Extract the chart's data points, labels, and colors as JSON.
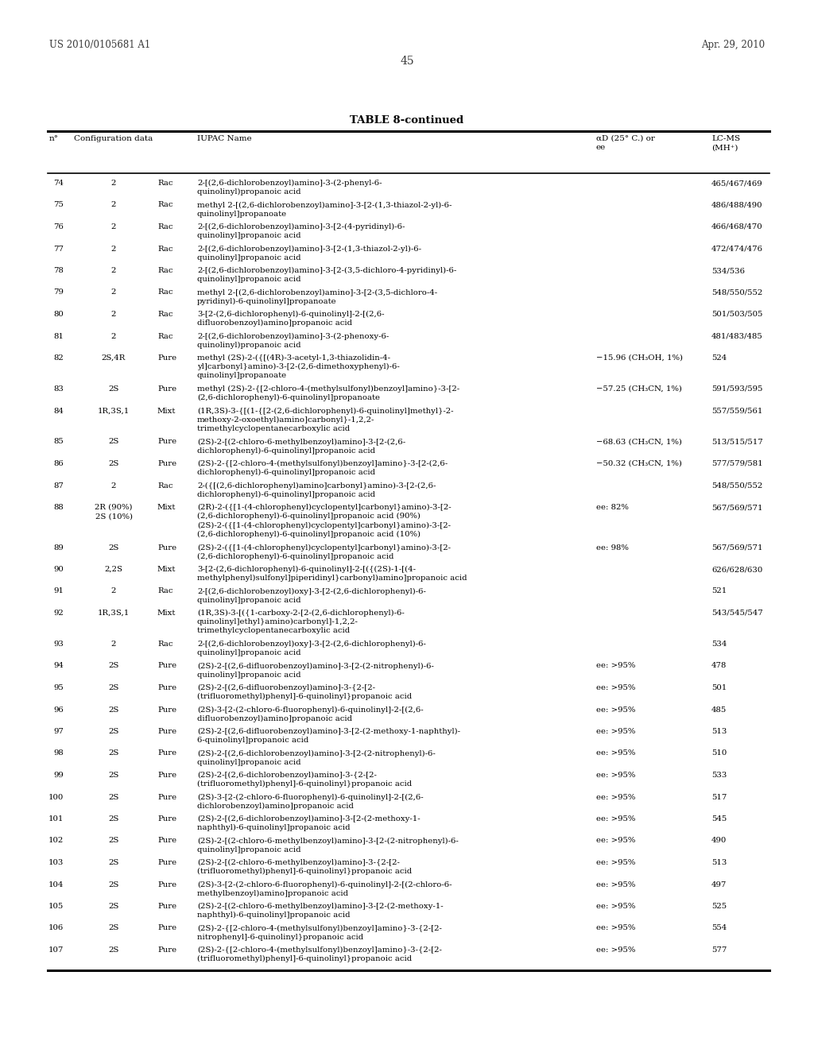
{
  "header_left": "US 2010/0105681 A1",
  "header_right": "Apr. 29, 2010",
  "page_number": "45",
  "table_title": "TABLE 8-continued",
  "rows": [
    [
      "74",
      "2",
      "Rac",
      "2-[(2,6-dichlorobenzoyl)amino]-3-(2-phenyl-6-\nquinolinyl)propanoic acid",
      "",
      "465/467/469"
    ],
    [
      "75",
      "2",
      "Rac",
      "methyl 2-[(2,6-dichlorobenzoyl)amino]-3-[2-(1,3-thiazol-2-yl)-6-\nquinolinyl]propanoate",
      "",
      "486/488/490"
    ],
    [
      "76",
      "2",
      "Rac",
      "2-[(2,6-dichlorobenzoyl)amino]-3-[2-(4-pyridinyl)-6-\nquinolinyl]propanoic acid",
      "",
      "466/468/470"
    ],
    [
      "77",
      "2",
      "Rac",
      "2-[(2,6-dichlorobenzoyl)amino]-3-[2-(1,3-thiazol-2-yl)-6-\nquinolinyl]propanoic acid",
      "",
      "472/474/476"
    ],
    [
      "78",
      "2",
      "Rac",
      "2-[(2,6-dichlorobenzoyl)amino]-3-[2-(3,5-dichloro-4-pyridinyl)-6-\nquinolinyl]propanoic acid",
      "",
      "534/536"
    ],
    [
      "79",
      "2",
      "Rac",
      "methyl 2-[(2,6-dichlorobenzoyl)amino]-3-[2-(3,5-dichloro-4-\npyridinyl)-6-quinolinyl]propanoate",
      "",
      "548/550/552"
    ],
    [
      "80",
      "2",
      "Rac",
      "3-[2-(2,6-dichlorophenyl)-6-quinolinyl]-2-[(2,6-\ndifluorobenzoyl)amino]propanoic acid",
      "",
      "501/503/505"
    ],
    [
      "81",
      "2",
      "Rac",
      "2-[(2,6-dichlorobenzoyl)amino]-3-(2-phenoxy-6-\nquinolinyl)propanoic acid",
      "",
      "481/483/485"
    ],
    [
      "82",
      "2S,4R",
      "Pure",
      "methyl (2S)-2-({[(4R)-3-acetyl-1,3-thiazolidin-4-\nyl]carbonyl}amino)-3-[2-(2,6-dimethoxyphenyl)-6-\nquinolinyl]propanoate",
      "−15.96 (CH₃OH, 1%)",
      "524"
    ],
    [
      "83",
      "2S",
      "Pure",
      "methyl (2S)-2-{[2-chloro-4-(methylsulfonyl)benzoyl]amino}-3-[2-\n(2,6-dichlorophenyl)-6-quinolinyl]propanoate",
      "−57.25 (CH₃CN, 1%)",
      "591/593/595"
    ],
    [
      "84",
      "1R,3S,1",
      "Mixt",
      "(1R,3S)-3-{[(1-{[2-(2,6-dichlorophenyl)-6-quinolinyl]methyl}-2-\nmethoxy-2-oxoethyl)amino]carbonyl}-1,2,2-\ntrimethylcyclopentanecarboxylic acid",
      "",
      "557/559/561"
    ],
    [
      "85",
      "2S",
      "Pure",
      "(2S)-2-[(2-chloro-6-methylbenzoyl)amino]-3-[2-(2,6-\ndichlorophenyl)-6-quinolinyl]propanoic acid",
      "−68.63 (CH₃CN, 1%)",
      "513/515/517"
    ],
    [
      "86",
      "2S",
      "Pure",
      "(2S)-2-{[2-chloro-4-(methylsulfonyl)benzoyl]amino}-3-[2-(2,6-\ndichlorophenyl)-6-quinolinyl]propanoic acid",
      "−50.32 (CH₃CN, 1%)",
      "577/579/581"
    ],
    [
      "87",
      "2",
      "Rac",
      "2-({[(2,6-dichlorophenyl)amino]carbonyl}amino)-3-[2-(2,6-\ndichlorophenyl)-6-quinolinyl]propanoic acid",
      "",
      "548/550/552"
    ],
    [
      "88",
      "2R (90%)\n2S (10%)",
      "Mixt",
      "(2R)-2-({[1-(4-chlorophenyl)cyclopentyl]carbonyl}amino)-3-[2-\n(2,6-dichlorophenyl)-6-quinolinyl]propanoic acid (90%)\n(2S)-2-({[1-(4-chlorophenyl)cyclopentyl]carbonyl}amino)-3-[2-\n(2,6-dichlorophenyl)-6-quinolinyl]propanoic acid (10%)",
      "ee: 82%",
      "567/569/571"
    ],
    [
      "89",
      "2S",
      "Pure",
      "(2S)-2-({[1-(4-chlorophenyl)cyclopentyl]carbonyl}amino)-3-[2-\n(2,6-dichlorophenyl)-6-quinolinyl]propanoic acid",
      "ee: 98%",
      "567/569/571"
    ],
    [
      "90",
      "2,2S",
      "Mixt",
      "3-[2-(2,6-dichlorophenyl)-6-quinolinyl]-2-[({(2S)-1-[(4-\nmethylphenyl)sulfonyl]piperidinyl}carbonyl)amino]propanoic acid",
      "",
      "626/628/630"
    ],
    [
      "91",
      "2",
      "Rac",
      "2-[(2,6-dichlorobenzoyl)oxy]-3-[2-(2,6-dichlorophenyl)-6-\nquinolinyl]propanoic acid",
      "",
      "521"
    ],
    [
      "92",
      "1R,3S,1",
      "Mixt",
      "(1R,3S)-3-[({1-carboxy-2-[2-(2,6-dichlorophenyl)-6-\nquinolinyl]ethyl}amino)carbonyl]-1,2,2-\ntrimethylcyclopentanecarboxylic acid",
      "",
      "543/545/547"
    ],
    [
      "93",
      "2",
      "Rac",
      "2-[(2,6-dichlorobenzoyl)oxy]-3-[2-(2,6-dichlorophenyl)-6-\nquinolinyl]propanoic acid",
      "",
      "534"
    ],
    [
      "94",
      "2S",
      "Pure",
      "(2S)-2-[(2,6-difluorobenzoyl)amino]-3-[2-(2-nitrophenyl)-6-\nquinolinyl]propanoic acid",
      "ee: >95%",
      "478"
    ],
    [
      "95",
      "2S",
      "Pure",
      "(2S)-2-[(2,6-difluorobenzoyl)amino]-3-{2-[2-\n(trifluoromethyl)phenyl]-6-quinolinyl}propanoic acid",
      "ee: >95%",
      "501"
    ],
    [
      "96",
      "2S",
      "Pure",
      "(2S)-3-[2-(2-chloro-6-fluorophenyl)-6-quinolinyl]-2-[(2,6-\ndifluorobenzoyl)amino]propanoic acid",
      "ee: >95%",
      "485"
    ],
    [
      "97",
      "2S",
      "Pure",
      "(2S)-2-[(2,6-difluorobenzoyl)amino]-3-[2-(2-methoxy-1-naphthyl)-\n6-quinolinyl]propanoic acid",
      "ee: >95%",
      "513"
    ],
    [
      "98",
      "2S",
      "Pure",
      "(2S)-2-[(2,6-dichlorobenzoyl)amino]-3-[2-(2-nitrophenyl)-6-\nquinolinyl]propanoic acid",
      "ee: >95%",
      "510"
    ],
    [
      "99",
      "2S",
      "Pure",
      "(2S)-2-[(2,6-dichlorobenzoyl)amino]-3-{2-[2-\n(trifluoromethyl)phenyl]-6-quinolinyl}propanoic acid",
      "ee: >95%",
      "533"
    ],
    [
      "100",
      "2S",
      "Pure",
      "(2S)-3-[2-(2-chloro-6-fluorophenyl)-6-quinolinyl]-2-[(2,6-\ndichlorobenzoyl)amino]propanoic acid",
      "ee: >95%",
      "517"
    ],
    [
      "101",
      "2S",
      "Pure",
      "(2S)-2-[(2,6-dichlorobenzoyl)amino]-3-[2-(2-methoxy-1-\nnaphthyl)-6-quinolinyl]propanoic acid",
      "ee: >95%",
      "545"
    ],
    [
      "102",
      "2S",
      "Pure",
      "(2S)-2-[(2-chloro-6-methylbenzoyl)amino]-3-[2-(2-nitrophenyl)-6-\nquinolinyl]propanoic acid",
      "ee: >95%",
      "490"
    ],
    [
      "103",
      "2S",
      "Pure",
      "(2S)-2-[(2-chloro-6-methylbenzoyl)amino]-3-{2-[2-\n(trifluoromethyl)phenyl]-6-quinolinyl}propanoic acid",
      "ee: >95%",
      "513"
    ],
    [
      "104",
      "2S",
      "Pure",
      "(2S)-3-[2-(2-chloro-6-fluorophenyl)-6-quinolinyl]-2-[(2-chloro-6-\nmethylbenzoyl)amino]propanoic acid",
      "ee: >95%",
      "497"
    ],
    [
      "105",
      "2S",
      "Pure",
      "(2S)-2-[(2-chloro-6-methylbenzoyl)amino]-3-[2-(2-methoxy-1-\nnaphthyl)-6-quinolinyl]propanoic acid",
      "ee: >95%",
      "525"
    ],
    [
      "106",
      "2S",
      "Pure",
      "(2S)-2-{[2-chloro-4-(methylsulfonyl)benzoyl]amino}-3-{2-[2-\nnitrophenyl]-6-quinolinyl}propanoic acid",
      "ee: >95%",
      "554"
    ],
    [
      "107",
      "2S",
      "Pure",
      "(2S)-2-{[2-chloro-4-(methylsulfonyl)benzoyl]amino}-3-{2-[2-\n(trifluoromethyl)phenyl]-6-quinolinyl}propanoic acid",
      "ee: >95%",
      "577"
    ]
  ]
}
